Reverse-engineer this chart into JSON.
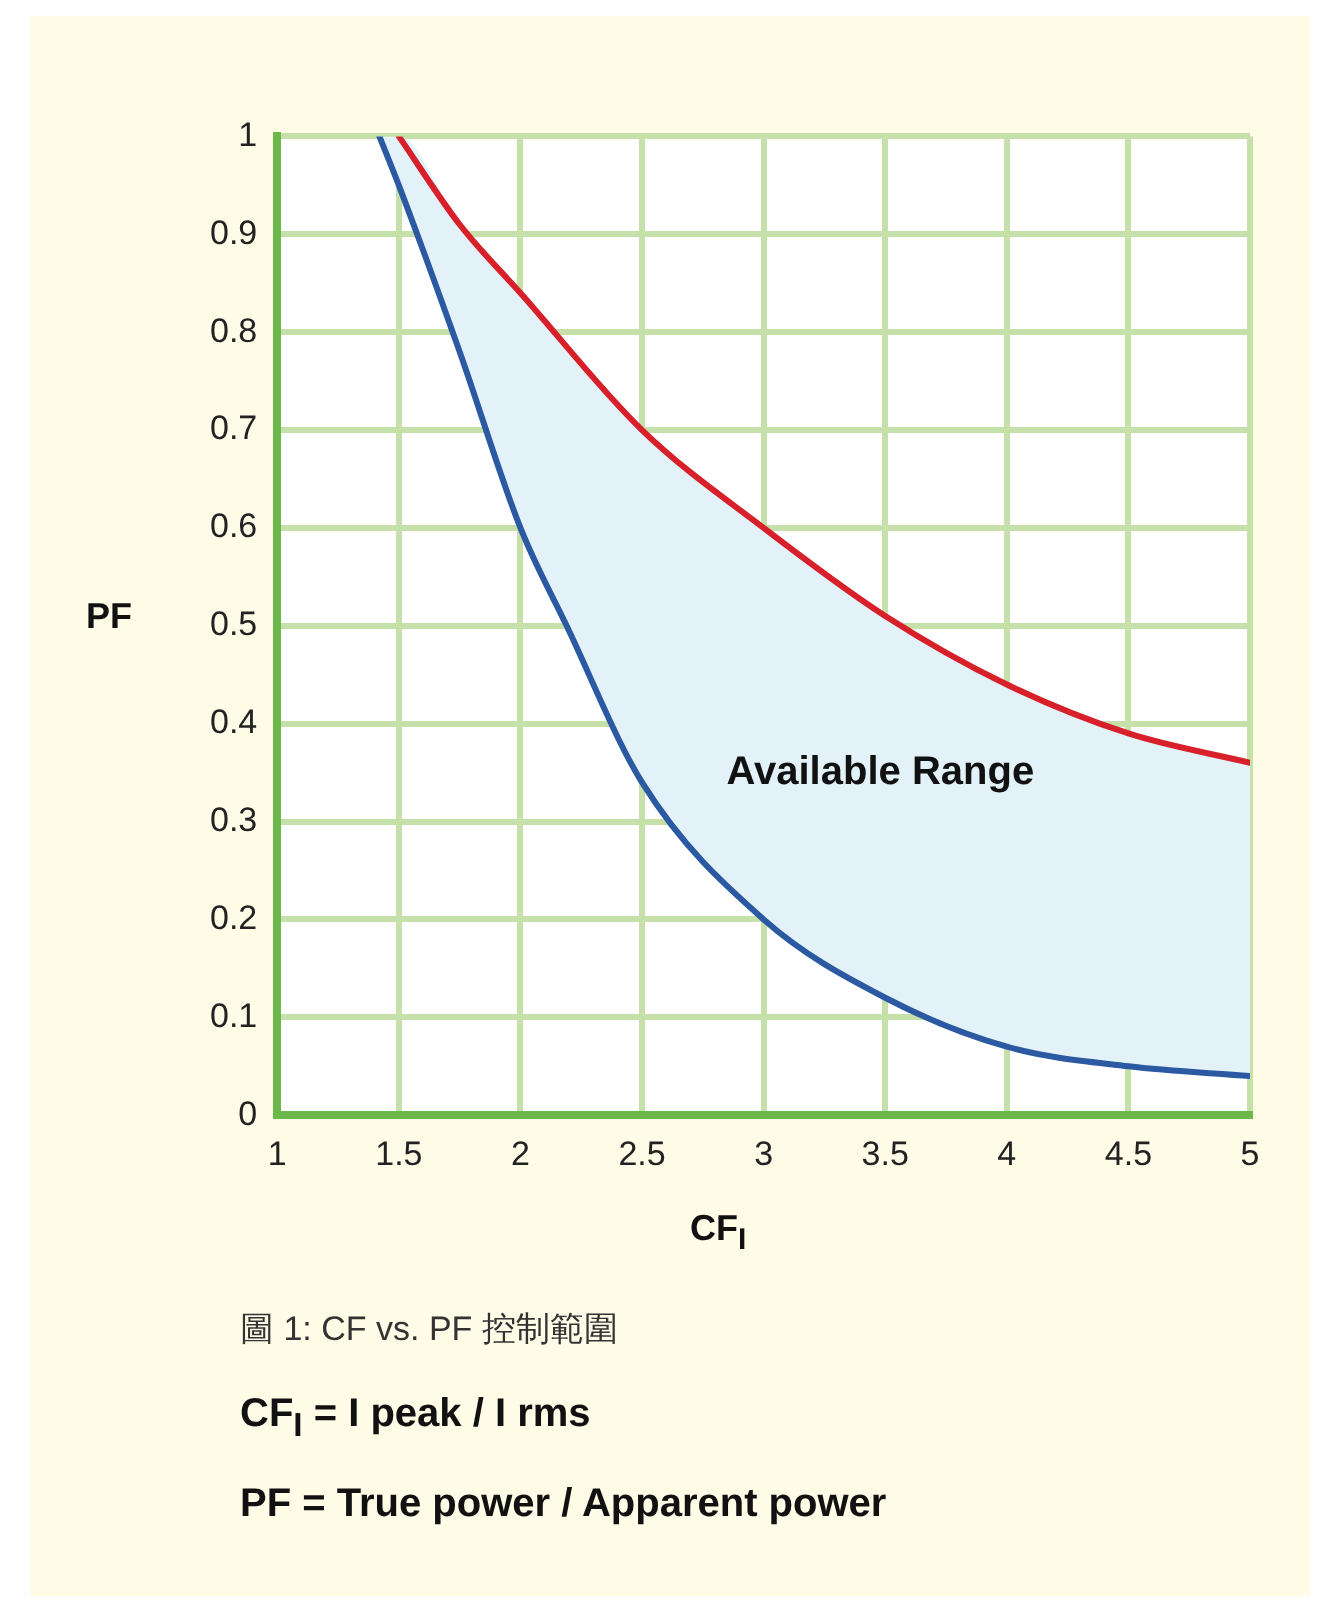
{
  "chart_data": {
    "type": "line",
    "xlabel": "CF$_{I}$",
    "ylabel": "PF",
    "series": [
      {
        "color": "#2b5aa3",
        "x": [
          1.42,
          1.5,
          1.75,
          2,
          2.19,
          2.5,
          3,
          3.5,
          4,
          4.5,
          5
        ],
        "values": [
          1,
          0.95,
          0.78,
          0.6,
          0.5,
          0.34,
          0.2,
          0.12,
          0.07,
          0.05,
          0.04
        ],
        "lower": [
          1,
          0.95,
          0.78,
          0.6,
          0.5,
          0.34,
          0.2,
          0.12,
          0.07,
          0.05,
          0.04
        ],
        "upper": [
          1,
          1,
          0.91,
          0.84,
          0.78,
          0.7,
          0.6,
          0.51,
          0.44,
          0.39,
          0.36
        ]
      },
      {
        "color": "#d7202a",
        "x": [
          1.5,
          1.75,
          2,
          2.5,
          3,
          3.5,
          4,
          4.5,
          5
        ],
        "values": [
          1,
          0.91,
          0.84,
          0.7,
          0.6,
          0.51,
          0.44,
          0.39,
          0.36
        ]
      }
    ],
    "xlim": [
      1,
      5
    ],
    "xticks": [
      1,
      1.5,
      2,
      2.5,
      3,
      3.5,
      4,
      4.5,
      5
    ],
    "ylim": [
      0,
      1
    ],
    "yticks": [
      0,
      0.1,
      0.2,
      0.3,
      0.4,
      0.5,
      0.6,
      0.7,
      0.8,
      0.9,
      1
    ],
    "grid": true,
    "marker": "none",
    "line_style": "solid",
    "annotations": [
      "Available Range",
      "圖 1: CF vs. PF 控制範圍",
      "CF$_{I}$ = I peak / I rms",
      "PF  = True power / Apparent power"
    ]
  }
}
